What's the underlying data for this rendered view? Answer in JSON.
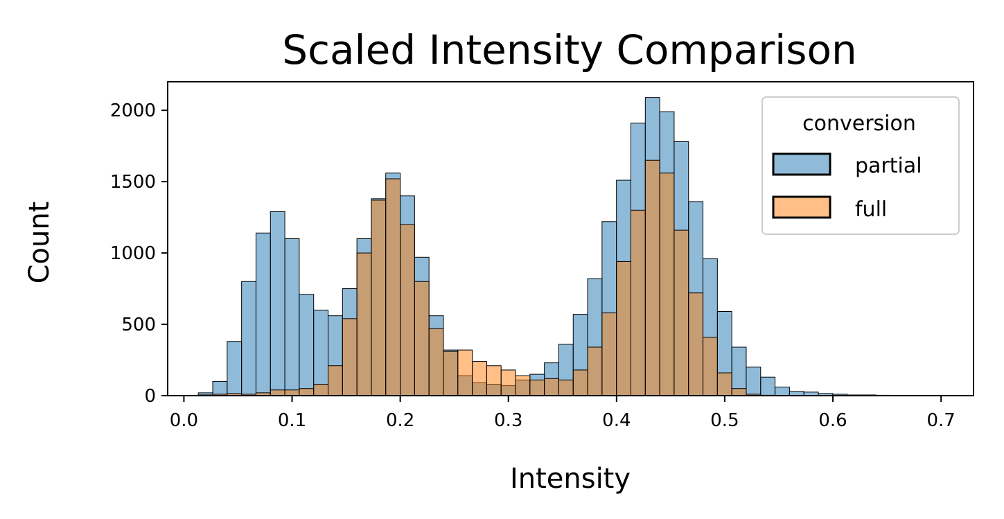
{
  "chart_data": {
    "type": "histogram",
    "title": "Scaled Intensity Comparison",
    "xlabel": "Intensity",
    "ylabel": "Count",
    "xlim": [
      -0.015,
      0.73
    ],
    "ylim": [
      0,
      2200
    ],
    "x_ticks": [
      0.0,
      0.1,
      0.2,
      0.3,
      0.4,
      0.5,
      0.6,
      0.7
    ],
    "x_tick_labels": [
      "0.0",
      "0.1",
      "0.2",
      "0.3",
      "0.4",
      "0.5",
      "0.6",
      "0.7"
    ],
    "y_ticks": [
      0,
      500,
      1000,
      1500,
      2000
    ],
    "y_tick_labels": [
      "0",
      "500",
      "1000",
      "1500",
      "2000"
    ],
    "bin_start": 0.0,
    "bin_width": 0.01333,
    "grid": false,
    "legend": {
      "title": "conversion",
      "position": "upper right"
    },
    "series": [
      {
        "name": "partial",
        "color": "#1f77b4",
        "values": [
          0,
          20,
          100,
          380,
          800,
          1140,
          1290,
          1100,
          710,
          600,
          560,
          750,
          1100,
          1380,
          1560,
          1400,
          970,
          560,
          320,
          140,
          90,
          80,
          70,
          110,
          150,
          230,
          360,
          570,
          820,
          1220,
          1510,
          1910,
          2090,
          1990,
          1780,
          1360,
          960,
          590,
          340,
          200,
          130,
          60,
          30,
          25,
          15,
          10,
          5,
          5,
          3,
          2,
          1
        ]
      },
      {
        "name": "full",
        "color": "#ff7f0e",
        "values": [
          0,
          5,
          10,
          15,
          10,
          20,
          40,
          40,
          50,
          80,
          210,
          540,
          1000,
          1370,
          1520,
          1200,
          800,
          470,
          310,
          320,
          240,
          210,
          180,
          140,
          110,
          120,
          110,
          180,
          340,
          580,
          940,
          1300,
          1650,
          1560,
          1160,
          720,
          410,
          160,
          50,
          10,
          3,
          2,
          1,
          0,
          0,
          0,
          0,
          0,
          0,
          0,
          0
        ]
      }
    ]
  }
}
